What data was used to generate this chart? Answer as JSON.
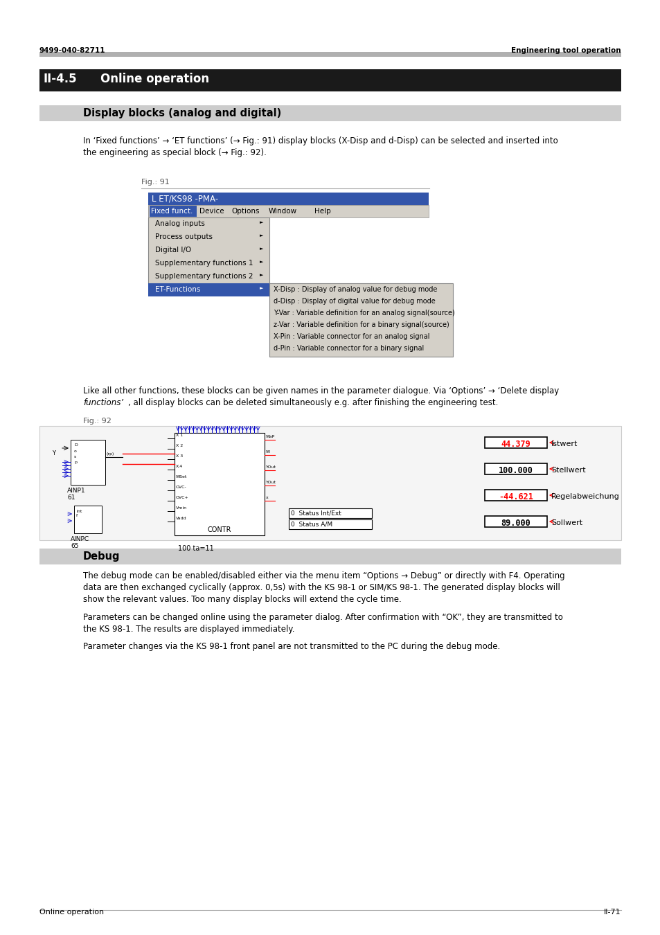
{
  "page_number_left": "9499-040-82711",
  "page_number_right": "Engineering tool operation",
  "section_number": "II-4.5",
  "section_title": "Online operation",
  "subsection_title": "Display blocks (analog and digital)",
  "body_text_1_line1": "In ‘Fixed functions’ → ‘ET functions’ (→ Fig.: 91) display blocks (X-Disp and d-Disp) can be selected and inserted into",
  "body_text_1_line2": "the engineering as special block (→ Fig.: 92).",
  "fig91_label": "Fig.: 91",
  "menu_title": "L ET/KS98 -PMA-",
  "menu_bar_items": [
    "Fixed funct.",
    "Device",
    "Options",
    "Window",
    "Help"
  ],
  "menu_items": [
    "Analog inputs",
    "Process outputs",
    "Digital I/O",
    "Supplementary functions 1",
    "Supplementary functions 2"
  ],
  "et_functions_label": "ET-Functions",
  "et_submenu_items": [
    "X-Disp : Display of analog value for debug mode",
    "d-Disp : Display of digital value for debug mode",
    "Y-Var : Variable definition for an analog signal(source)",
    "z-Var : Variable definition for a binary signal(source)",
    "X-Pin : Variable connector for an analog signal",
    "d-Pin : Variable connector for a binary signal"
  ],
  "body_text_2_line1": "Like all other functions, these blocks can be given names in the parameter dialogue. Via ‘Options’ → ‘Delete display",
  "body_text_2_line2_italic": "functions’",
  "body_text_2_line2_rest": ", all display blocks can be deleted simultaneously e.g. after finishing the engineering test.",
  "fig92_label": "Fig.: 92",
  "debug_title": "Debug",
  "debug_text_1_line1": "The debug mode can be enabled/disabled either via the menu item “Options → Debug” or directly with F4. Operating",
  "debug_text_1_line2": "data are then exchanged cyclically (approx. 0,5s) with the KS 98-1 or SIM/KS 98-1. The generated display blocks will",
  "debug_text_1_line3": "show the relevant values. Too many display blocks will extend the cycle time.",
  "debug_text_2_line1": "Parameters can be changed online using the parameter dialog. After confirmation with “OK”, they are transmitted to",
  "debug_text_2_line2": "the KS 98-1. The results are displayed immediately.",
  "debug_text_3": "Parameter changes via the KS 98-1 front panel are not transmitted to the PC during the debug mode.",
  "footer_left": "Online operation",
  "footer_right": "II-71",
  "display_values": [
    {
      "label": "44.379",
      "color": "#ff0000",
      "desc": "Istwert"
    },
    {
      "label": "100.000",
      "color": "#000000",
      "desc": "Stellwert"
    },
    {
      "label": "-44.621",
      "color": "#ff0000",
      "desc": "Regelabweichung"
    },
    {
      "label": "89.000",
      "color": "#000000",
      "desc": "Sollwert"
    }
  ]
}
